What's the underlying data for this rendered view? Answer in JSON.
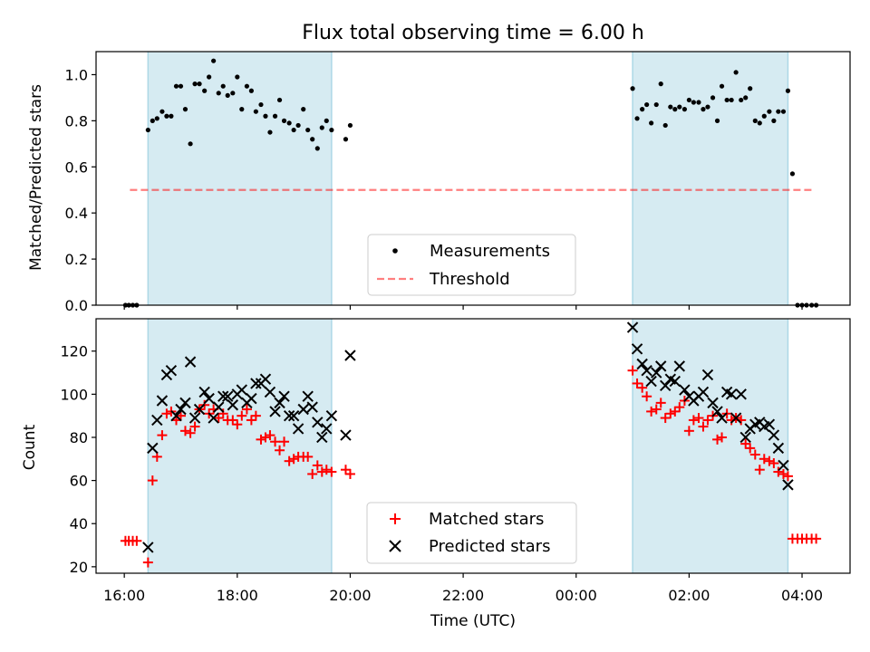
{
  "colors": {
    "band": "#add8e6",
    "band_alpha": 0.5,
    "measurements": "#000000",
    "threshold": "#ff0000",
    "threshold_alpha": 0.5,
    "matched": "#ff0000",
    "predicted": "#000000"
  },
  "chart_data": [
    {
      "type": "scatter",
      "title": "Flux total observing time = 6.00 h",
      "xlabel": "",
      "ylabel": "Matched/Predicted stars",
      "x_unit": "hours since 16:00 UTC",
      "xlim": [
        -0.5,
        12.85
      ],
      "ylim": [
        0.0,
        1.1
      ],
      "yticks": [
        0.0,
        0.2,
        0.4,
        0.6,
        0.8,
        1.0
      ],
      "ytick_labels": [
        "0.0",
        "0.2",
        "0.4",
        "0.6",
        "0.8",
        "1.0"
      ],
      "xticks": [
        0,
        2,
        4,
        6,
        8,
        10,
        12
      ],
      "xtick_labels": [
        "",
        "",
        "",
        "",
        "",
        "",
        ""
      ],
      "grid": false,
      "legend": "lower-center",
      "shaded_intervals": [
        [
          0.42,
          3.67
        ],
        [
          9.0,
          11.75
        ]
      ],
      "threshold": {
        "name": "Threshold",
        "y": 0.5,
        "x_range": [
          0.1,
          12.2
        ]
      },
      "series": [
        {
          "name": "Measurements",
          "x": [
            0.02,
            0.08,
            0.15,
            0.22,
            0.42,
            0.5,
            0.58,
            0.67,
            0.75,
            0.83,
            0.92,
            1.0,
            1.08,
            1.17,
            1.25,
            1.33,
            1.42,
            1.5,
            1.58,
            1.67,
            1.75,
            1.83,
            1.92,
            2.0,
            2.08,
            2.17,
            2.25,
            2.33,
            2.42,
            2.5,
            2.58,
            2.67,
            2.75,
            2.83,
            2.92,
            3.0,
            3.08,
            3.17,
            3.25,
            3.33,
            3.42,
            3.5,
            3.58,
            3.67,
            3.92,
            4.0,
            9.0,
            9.08,
            9.17,
            9.25,
            9.33,
            9.42,
            9.5,
            9.58,
            9.67,
            9.75,
            9.83,
            9.92,
            10.0,
            10.08,
            10.17,
            10.25,
            10.33,
            10.42,
            10.5,
            10.58,
            10.67,
            10.75,
            10.83,
            10.92,
            11.0,
            11.08,
            11.17,
            11.25,
            11.33,
            11.42,
            11.5,
            11.58,
            11.67,
            11.75,
            11.83,
            11.92,
            12.0,
            12.08,
            12.17,
            12.25
          ],
          "y": [
            0.0,
            0.0,
            0.0,
            0.0,
            0.76,
            0.8,
            0.81,
            0.84,
            0.82,
            0.82,
            0.95,
            0.95,
            0.85,
            0.7,
            0.96,
            0.96,
            0.93,
            0.99,
            1.06,
            0.92,
            0.95,
            0.91,
            0.92,
            0.99,
            0.85,
            0.95,
            0.93,
            0.84,
            0.87,
            0.82,
            0.75,
            0.82,
            0.89,
            0.8,
            0.79,
            0.76,
            0.78,
            0.85,
            0.76,
            0.72,
            0.68,
            0.77,
            0.8,
            0.76,
            0.72,
            0.78,
            0.94,
            0.81,
            0.85,
            0.87,
            0.79,
            0.87,
            0.96,
            0.78,
            0.86,
            0.85,
            0.86,
            0.85,
            0.89,
            0.88,
            0.88,
            0.85,
            0.86,
            0.9,
            0.8,
            0.95,
            0.89,
            0.89,
            1.01,
            0.89,
            0.9,
            0.94,
            0.8,
            0.79,
            0.82,
            0.84,
            0.8,
            0.84,
            0.84,
            0.93,
            0.57,
            0.0,
            0.0,
            0.0,
            0.0,
            0.0
          ]
        }
      ]
    },
    {
      "type": "scatter",
      "title": "",
      "xlabel": "Time (UTC)",
      "ylabel": "Count",
      "x_unit": "hours since 16:00 UTC",
      "xlim": [
        -0.5,
        12.85
      ],
      "ylim": [
        17,
        135
      ],
      "yticks": [
        20,
        40,
        60,
        80,
        100,
        120
      ],
      "ytick_labels": [
        "20",
        "40",
        "60",
        "80",
        "100",
        "120"
      ],
      "xticks": [
        0,
        2,
        4,
        6,
        8,
        10,
        12
      ],
      "xtick_labels": [
        "16:00",
        "18:00",
        "20:00",
        "22:00",
        "00:00",
        "02:00",
        "04:00"
      ],
      "grid": false,
      "legend": "lower-center",
      "shaded_intervals": [
        [
          0.42,
          3.67
        ],
        [
          9.0,
          11.75
        ]
      ],
      "series": [
        {
          "name": "Matched stars",
          "marker": "+",
          "x": [
            0.02,
            0.08,
            0.15,
            0.22,
            0.42,
            0.5,
            0.58,
            0.67,
            0.75,
            0.83,
            0.92,
            1.0,
            1.08,
            1.17,
            1.25,
            1.33,
            1.42,
            1.5,
            1.58,
            1.67,
            1.75,
            1.83,
            1.92,
            2.0,
            2.08,
            2.17,
            2.25,
            2.33,
            2.42,
            2.5,
            2.58,
            2.67,
            2.75,
            2.83,
            2.92,
            3.0,
            3.08,
            3.17,
            3.25,
            3.33,
            3.42,
            3.5,
            3.58,
            3.67,
            3.92,
            4.0,
            9.0,
            9.08,
            9.17,
            9.25,
            9.33,
            9.42,
            9.5,
            9.58,
            9.67,
            9.75,
            9.83,
            9.92,
            10.0,
            10.08,
            10.17,
            10.25,
            10.33,
            10.42,
            10.5,
            10.58,
            10.67,
            10.75,
            10.83,
            10.92,
            11.0,
            11.08,
            11.17,
            11.25,
            11.33,
            11.42,
            11.5,
            11.58,
            11.67,
            11.75,
            11.83,
            11.92,
            12.0,
            12.08,
            12.17,
            12.25
          ],
          "y": [
            32,
            32,
            32,
            32,
            22,
            60,
            71,
            81,
            91,
            92,
            88,
            90,
            83,
            82,
            85,
            93,
            95,
            91,
            93,
            89,
            91,
            88,
            88,
            86,
            90,
            93,
            88,
            90,
            79,
            80,
            81,
            78,
            74,
            78,
            69,
            70,
            71,
            71,
            71,
            63,
            67,
            64,
            65,
            64,
            65,
            63,
            111,
            105,
            103,
            99,
            92,
            93,
            96,
            89,
            91,
            92,
            94,
            97,
            83,
            88,
            89,
            85,
            88,
            90,
            79,
            80,
            91,
            88,
            89,
            88,
            77,
            75,
            72,
            65,
            70,
            69,
            68,
            64,
            63,
            62,
            33,
            33,
            33,
            33,
            33,
            33
          ]
        },
        {
          "name": "Predicted stars",
          "marker": "x",
          "x": [
            0.42,
            0.5,
            0.58,
            0.67,
            0.75,
            0.83,
            0.92,
            1.0,
            1.08,
            1.17,
            1.25,
            1.33,
            1.42,
            1.5,
            1.58,
            1.67,
            1.75,
            1.83,
            1.92,
            2.0,
            2.08,
            2.17,
            2.25,
            2.33,
            2.42,
            2.5,
            2.58,
            2.67,
            2.75,
            2.83,
            2.92,
            3.0,
            3.08,
            3.17,
            3.25,
            3.33,
            3.42,
            3.5,
            3.58,
            3.67,
            3.92,
            4.0,
            9.0,
            9.08,
            9.17,
            9.25,
            9.33,
            9.42,
            9.5,
            9.58,
            9.67,
            9.75,
            9.83,
            9.92,
            10.0,
            10.08,
            10.17,
            10.25,
            10.33,
            10.42,
            10.5,
            10.58,
            10.67,
            10.75,
            10.83,
            10.92,
            11.0,
            11.08,
            11.17,
            11.25,
            11.33,
            11.42,
            11.5,
            11.58,
            11.67,
            11.75
          ],
          "y": [
            29,
            75,
            88,
            97,
            109,
            111,
            90,
            93,
            96,
            115,
            89,
            93,
            101,
            98,
            89,
            94,
            99,
            99,
            95,
            100,
            102,
            96,
            98,
            105,
            105,
            107,
            101,
            92,
            96,
            99,
            90,
            90,
            84,
            93,
            99,
            94,
            87,
            80,
            84,
            90,
            81,
            118,
            131,
            121,
            114,
            111,
            106,
            110,
            113,
            104,
            107,
            106,
            113,
            102,
            99,
            97,
            99,
            101,
            109,
            96,
            92,
            89,
            101,
            100,
            89,
            100,
            80,
            84,
            86,
            87,
            85,
            86,
            81,
            75,
            67,
            58
          ]
        }
      ]
    }
  ]
}
